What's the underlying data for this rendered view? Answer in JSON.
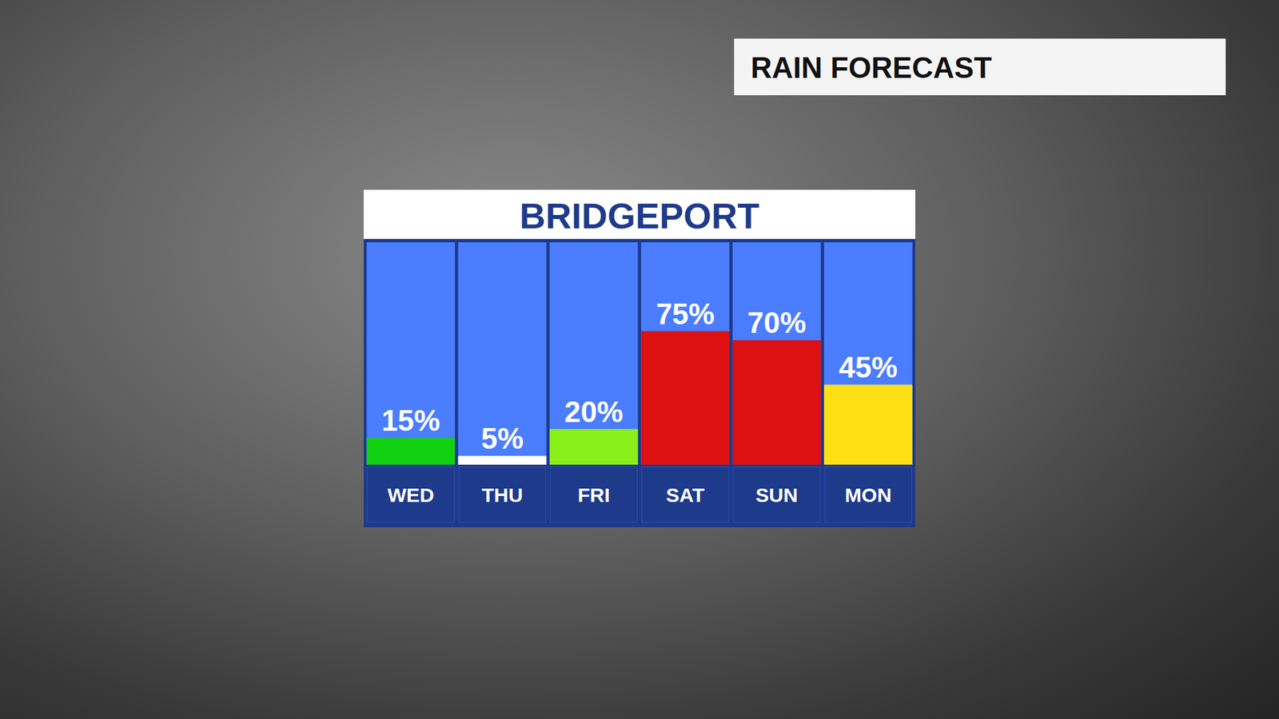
{
  "chart_data": {
    "type": "bar",
    "title": "BRIDGEPORT",
    "subtitle": "RAIN FORECAST",
    "categories": [
      "WED",
      "THU",
      "FRI",
      "SAT",
      "SUN",
      "MON"
    ],
    "values": [
      15,
      5,
      20,
      75,
      70,
      45
    ],
    "value_labels": [
      "15%",
      "5%",
      "20%",
      "75%",
      "70%",
      "45%"
    ],
    "colors": [
      "#12d012",
      "#ffffff",
      "#8af01a",
      "#dd1111",
      "#dd1111",
      "#ffe014"
    ],
    "ylim": [
      0,
      125
    ],
    "tick_labels": "x",
    "grid": false,
    "data_labels": true
  }
}
